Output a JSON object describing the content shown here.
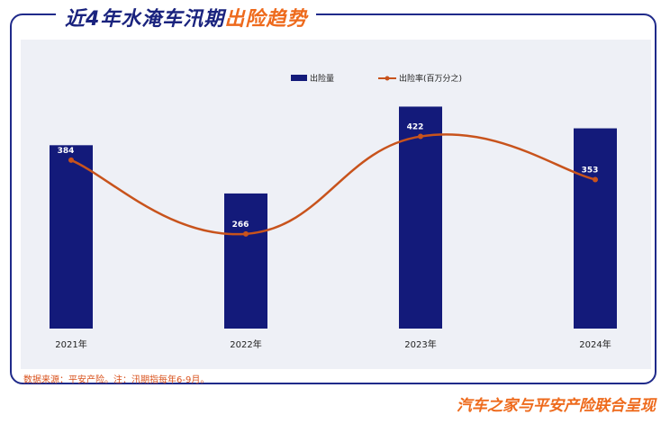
{
  "title": {
    "main": "近4年水淹车汛期",
    "accent": "出险趋势"
  },
  "source_note": "数据来源：平安产险。注：汛期指每年6-9月。",
  "footer": "汽车之家与平安产险联合呈现",
  "colors": {
    "bar": "#131a7a",
    "line": "#c8531c",
    "accent": "#ee6a1c",
    "frame": "#1f2a8a"
  },
  "chart_data": {
    "type": "bar",
    "categories": [
      "2021年",
      "2022年",
      "2023年",
      "2024年"
    ],
    "series": [
      {
        "name": "出险量",
        "type": "bar",
        "relative_values": [
          0.76,
          0.56,
          0.92,
          0.83
        ]
      },
      {
        "name": "出险率(百万分之)",
        "type": "line",
        "values": [
          384,
          266,
          422,
          353
        ]
      }
    ],
    "legend": [
      "出险量",
      "出险率(百万分之)"
    ],
    "legend_position": "top-right",
    "grid": false
  }
}
